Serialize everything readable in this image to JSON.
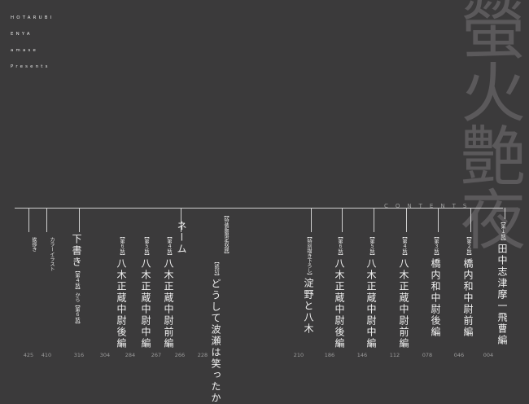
{
  "credits": [
    "HOTARUBI",
    "ENYA",
    "amase",
    "Presents"
  ],
  "big_title": "螢火艶夜",
  "contents_label": "CONTENTS",
  "entries": [
    {
      "chapter": "【第１話】",
      "title": "田中志津摩一飛曹編",
      "page": "004"
    },
    {
      "chapter": "【第２話】",
      "title": "橋内和中尉前編",
      "page": "046"
    },
    {
      "chapter": "【第３話】",
      "title": "橋内和中尉後編",
      "page": "078"
    },
    {
      "chapter": "【第４話】",
      "title": "八木正蔵中尉前編",
      "page": "112"
    },
    {
      "chapter": "【第５話】",
      "title": "八木正蔵中尉中編",
      "page": "146"
    },
    {
      "chapter": "【第６話】",
      "title": "八木正蔵中尉後編",
      "page": "186"
    },
    {
      "chapter": "【特別描き下ろし】",
      "title": "淀野と八木",
      "page": "210"
    },
    {
      "chapter": "【特装版限定収録】",
      "title": "",
      "page": ""
    },
    {
      "chapter": "【読切】",
      "title": "どうして波瀬は笑ったか",
      "page": "228"
    },
    {
      "chapter": "",
      "title": "ネーム",
      "page": "266"
    },
    {
      "chapter": "【第４話】",
      "title": "八木正蔵中尉前編",
      "page": "267"
    },
    {
      "chapter": "【第５話】",
      "title": "八木正蔵中尉中編",
      "page": "284"
    },
    {
      "chapter": "【第６話】",
      "title": "八木正蔵中尉後編",
      "page": "304"
    },
    {
      "chapter": "【第４話】から【第６話】",
      "title": "下書き",
      "page": "316"
    },
    {
      "chapter": "",
      "title": "カラーイラスト",
      "page": "410"
    },
    {
      "chapter": "",
      "title": "挨拶き",
      "page": "425"
    }
  ]
}
